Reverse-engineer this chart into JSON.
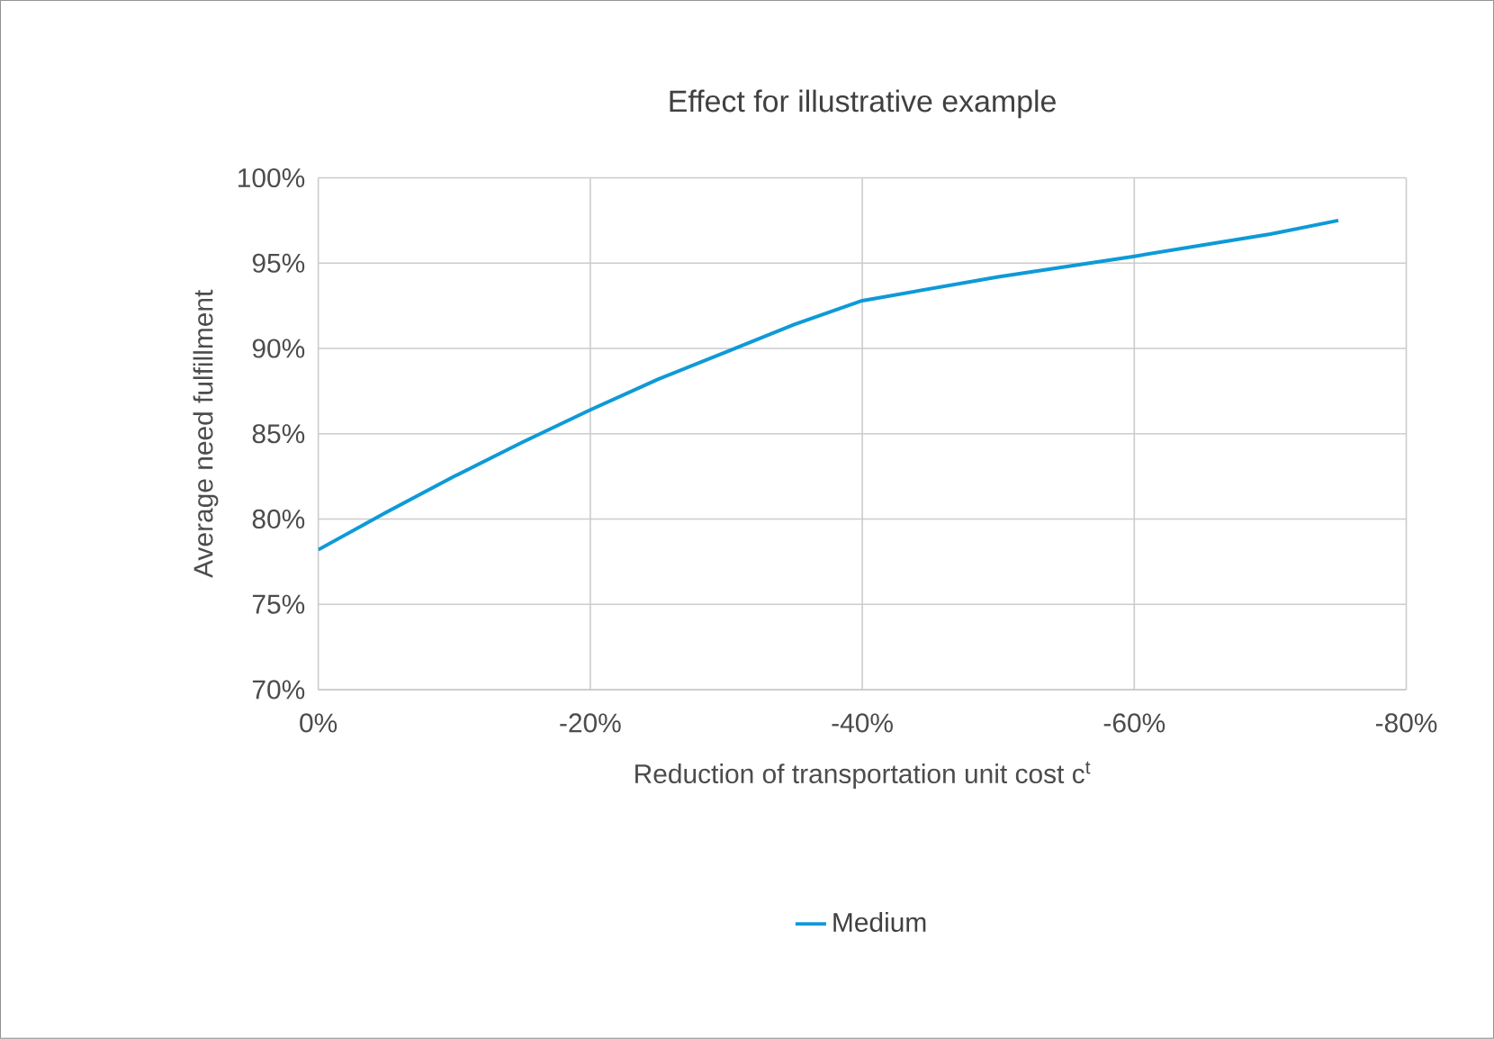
{
  "chart_data": {
    "type": "line",
    "title": "Effect for illustrative example",
    "xlabel": "Reduction of transportation unit cost c$^{t}$",
    "ylabel": "Average need fulfillment",
    "x": [
      0,
      -5,
      -10,
      -15,
      -20,
      -25,
      -30,
      -35,
      -40,
      -50,
      -60,
      -70,
      -75
    ],
    "series": [
      {
        "name": "Medium",
        "color": "#0e9ad7",
        "values": [
          78.2,
          80.4,
          82.5,
          84.5,
          86.4,
          88.2,
          89.8,
          91.4,
          92.8,
          94.2,
          95.4,
          96.7,
          97.5
        ]
      }
    ],
    "xlim": [
      0,
      -80
    ],
    "xticks": [
      {
        "value": 0,
        "label": "0%"
      },
      {
        "value": -20,
        "label": "-20%"
      },
      {
        "value": -40,
        "label": "-40%"
      },
      {
        "value": -60,
        "label": "-60%"
      },
      {
        "value": -80,
        "label": "-80%"
      }
    ],
    "ylim": [
      70,
      100
    ],
    "yticks": [
      {
        "value": 70,
        "label": "70%"
      },
      {
        "value": 75,
        "label": "75%"
      },
      {
        "value": 80,
        "label": "80%"
      },
      {
        "value": 85,
        "label": "85%"
      },
      {
        "value": 90,
        "label": "90%"
      },
      {
        "value": 95,
        "label": "95%"
      },
      {
        "value": 100,
        "label": "100%"
      }
    ],
    "grid": true,
    "legend": "bottom",
    "marker": "none",
    "line_style": "solid"
  }
}
